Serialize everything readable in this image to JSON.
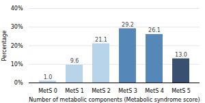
{
  "chart_data": {
    "type": "bar",
    "categories": [
      "MetS 0",
      "MetS 1",
      "MetS 2",
      "MetS 3",
      "MetS 4",
      "MetS 5"
    ],
    "values": [
      1.0,
      9.6,
      21.1,
      29.2,
      26.1,
      13.0
    ],
    "value_labels": [
      "1.0",
      "9.6",
      "21.1",
      "29.2",
      "26.1",
      "13.0"
    ],
    "data_labels": true,
    "colors": [
      "#b8d4ea",
      "#b8d4ea",
      "#b8d4ea",
      "#5588b8",
      "#5588b8",
      "#3a5070"
    ],
    "xlabel": "Number of metabolic components (Metabolic syndrome score)",
    "ylabel": "Percentage",
    "ylim": [
      0,
      40
    ],
    "yticks": [
      {
        "value": 0,
        "label": "0%"
      },
      {
        "value": 10,
        "label": "10%"
      },
      {
        "value": 20,
        "label": "20%"
      },
      {
        "value": 30,
        "label": "30%"
      },
      {
        "value": 40,
        "label": "40%"
      }
    ],
    "grid": true
  }
}
